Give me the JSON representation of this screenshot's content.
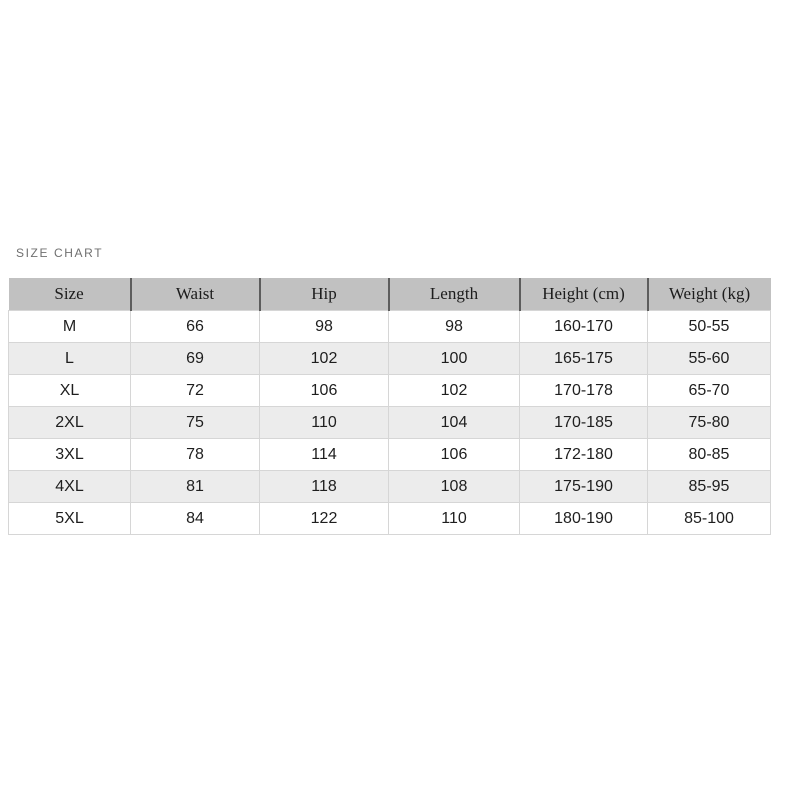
{
  "chart_data": {
    "type": "table",
    "title": "SIZE CHART",
    "columns": [
      "Size",
      "Waist",
      "Hip",
      "Length",
      "Height (cm)",
      "Weight (kg)"
    ],
    "rows": [
      [
        "M",
        "66",
        "98",
        "98",
        "160-170",
        "50-55"
      ],
      [
        "L",
        "69",
        "102",
        "100",
        "165-175",
        "55-60"
      ],
      [
        "XL",
        "72",
        "106",
        "102",
        "170-178",
        "65-70"
      ],
      [
        "2XL",
        "75",
        "110",
        "104",
        "170-185",
        "75-80"
      ],
      [
        "3XL",
        "78",
        "114",
        "106",
        "172-180",
        "80-85"
      ],
      [
        "4XL",
        "81",
        "118",
        "108",
        "175-190",
        "85-95"
      ],
      [
        "5XL",
        "84",
        "122",
        "110",
        "180-190",
        "85-100"
      ]
    ],
    "layout": {
      "header_position": "top",
      "row_striping": "alternating",
      "grid": true
    }
  },
  "colors": {
    "header_background": "#c1c1c1",
    "alt_row_background": "#ececec",
    "row_background": "#ffffff",
    "cell_border": "#d6d6d6",
    "header_divider": "#5d5d5d",
    "title_text": "#6f6f6f",
    "cell_text": "#1e1e1e"
  }
}
